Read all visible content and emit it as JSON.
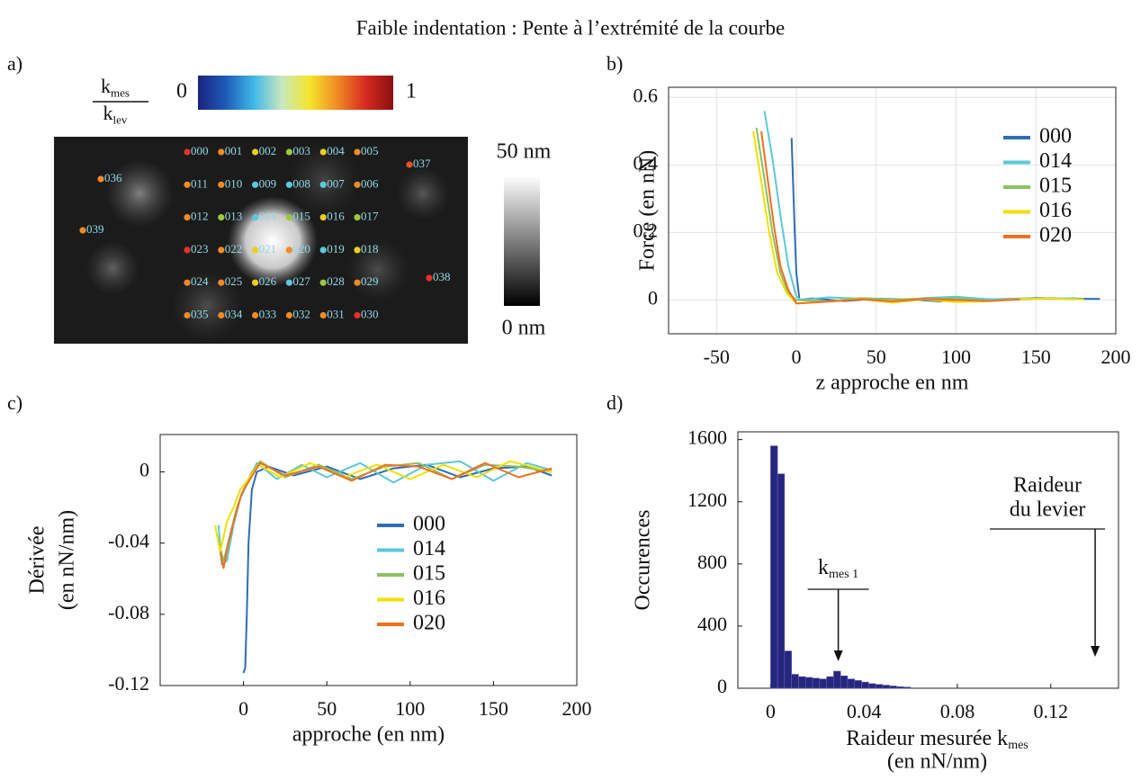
{
  "title": "Faible indentation : Pente à l’extrémité de la courbe",
  "chart_data": [
    {
      "type": "map",
      "panel": "a)",
      "colorbar": {
        "label": {
          "numerator": {
            "base": "k",
            "sub": "mes"
          },
          "denominator": {
            "base": "k",
            "sub": "lev"
          }
        },
        "clim": [
          0,
          1
        ],
        "ticks": [
          0,
          1
        ],
        "colors": [
          "#1a237e",
          "#1e5bb8",
          "#3fb8e8",
          "#c8e8c0",
          "#f5e62a",
          "#f08a24",
          "#d62a20",
          "#8b1010"
        ]
      },
      "height_scale": {
        "lim": [
          0,
          50
        ],
        "ticks": [
          {
            "value": 0,
            "label": "0 nm"
          },
          {
            "value": 50,
            "label": "50 nm"
          }
        ]
      },
      "grid_points": [
        [
          {
            "label": "000",
            "color": "#e8302a"
          },
          {
            "label": "001",
            "color": "#f08a24"
          },
          {
            "label": "002",
            "color": "#e8d020"
          },
          {
            "label": "003",
            "color": "#9cc83c"
          },
          {
            "label": "004",
            "color": "#e8d020"
          },
          {
            "label": "005",
            "color": "#f08a24"
          }
        ],
        [
          {
            "label": "011",
            "color": "#f08a24"
          },
          {
            "label": "010",
            "color": "#f08a24"
          },
          {
            "label": "009",
            "color": "#5cc8dc"
          },
          {
            "label": "008",
            "color": "#5cc8dc"
          },
          {
            "label": "007",
            "color": "#5cc8dc"
          },
          {
            "label": "006",
            "color": "#f08a24"
          }
        ],
        [
          {
            "label": "012",
            "color": "#f08a24"
          },
          {
            "label": "013",
            "color": "#9cc83c"
          },
          {
            "label": "014",
            "color": "#5cc8dc"
          },
          {
            "label": "015",
            "color": "#9cc83c"
          },
          {
            "label": "016",
            "color": "#e8d020"
          },
          {
            "label": "017",
            "color": "#9cc83c"
          }
        ],
        [
          {
            "label": "023",
            "color": "#e8302a"
          },
          {
            "label": "022",
            "color": "#f08a24"
          },
          {
            "label": "021",
            "color": "#e8d020"
          },
          {
            "label": "020",
            "color": "#f08a24"
          },
          {
            "label": "019",
            "color": "#5cc8dc"
          },
          {
            "label": "018",
            "color": "#e8d020"
          }
        ],
        [
          {
            "label": "024",
            "color": "#f08a24"
          },
          {
            "label": "025",
            "color": "#f08a24"
          },
          {
            "label": "026",
            "color": "#e8d020"
          },
          {
            "label": "027",
            "color": "#5cc8dc"
          },
          {
            "label": "028",
            "color": "#9cc83c"
          },
          {
            "label": "029",
            "color": "#f08a24"
          }
        ],
        [
          {
            "label": "035",
            "color": "#f08a24"
          },
          {
            "label": "034",
            "color": "#f08a24"
          },
          {
            "label": "033",
            "color": "#f08a24"
          },
          {
            "label": "032",
            "color": "#f08a24"
          },
          {
            "label": "031",
            "color": "#f08a24"
          },
          {
            "label": "030",
            "color": "#e8302a"
          }
        ]
      ],
      "extra_points": [
        {
          "label": "036",
          "color": "#f08a24"
        },
        {
          "label": "037",
          "color": "#e8502a"
        },
        {
          "label": "038",
          "color": "#e8302a"
        },
        {
          "label": "039",
          "color": "#f08a24"
        }
      ]
    },
    {
      "type": "line",
      "panel": "b)",
      "xlabel": "z approche en nm",
      "ylabel": "Force (en nN)",
      "xlim": [
        -80,
        200
      ],
      "ylim": [
        -0.1,
        0.63
      ],
      "xticks": [
        -50,
        0,
        50,
        100,
        150,
        200
      ],
      "yticks": [
        0,
        0.2,
        0.4,
        0.6
      ],
      "grid": true,
      "legend": "upper right",
      "series": [
        {
          "name": "000",
          "color": "#2f6db5",
          "x": [
            -3,
            -1,
            0,
            2,
            10,
            30,
            50,
            70,
            90,
            110,
            130,
            150,
            170,
            190
          ],
          "values": [
            0.48,
            0.2,
            0.08,
            0,
            0.005,
            -0.003,
            0.004,
            0.002,
            -0.004,
            0.005,
            0,
            0.006,
            0.004,
            0.003
          ]
        },
        {
          "name": "014",
          "color": "#5bc8d8",
          "x": [
            -20,
            -15,
            -10,
            -5,
            0,
            3,
            20,
            40,
            60,
            80,
            100,
            120,
            140,
            160,
            175
          ],
          "values": [
            0.56,
            0.42,
            0.25,
            0.1,
            0.01,
            0,
            0.008,
            0.004,
            -0.005,
            0.006,
            0.01,
            0.002,
            0.005,
            0.004,
            0.006
          ]
        },
        {
          "name": "015",
          "color": "#8cc060",
          "x": [
            -25,
            -20,
            -15,
            -10,
            -5,
            0,
            20,
            40,
            60,
            80,
            100,
            120,
            140,
            160
          ],
          "values": [
            0.51,
            0.36,
            0.2,
            0.08,
            0.02,
            0,
            -0.004,
            0.006,
            0.002,
            0.004,
            0.005,
            -0.003,
            0.002,
            0.006
          ]
        },
        {
          "name": "016",
          "color": "#f0e000",
          "x": [
            -27,
            -22,
            -17,
            -12,
            -6,
            0,
            20,
            40,
            60,
            80,
            100,
            120,
            140,
            160,
            180
          ],
          "values": [
            0.5,
            0.35,
            0.2,
            0.08,
            0.02,
            -0.01,
            -0.005,
            0.003,
            -0.008,
            0.002,
            -0.006,
            -0.004,
            0.003,
            0.004,
            0.002
          ]
        },
        {
          "name": "020",
          "color": "#f07020",
          "x": [
            -22,
            -18,
            -14,
            -10,
            -5,
            0,
            2,
            20,
            40,
            60,
            80,
            100,
            120,
            140
          ],
          "values": [
            0.5,
            0.36,
            0.22,
            0.1,
            0.03,
            -0.01,
            -0.01,
            -0.005,
            0.002,
            -0.004,
            0.003,
            0,
            -0.003,
            0.002
          ]
        }
      ]
    },
    {
      "type": "line",
      "panel": "c)",
      "xlabel": "approche (en nm)",
      "ylabel": [
        "Dérivée",
        "(en nN/nm)"
      ],
      "xlim": [
        -50,
        200
      ],
      "ylim": [
        -0.12,
        0.021
      ],
      "xticks": [
        0,
        50,
        100,
        150,
        200
      ],
      "yticks": [
        0,
        -0.04,
        -0.08,
        -0.12
      ],
      "grid": false,
      "legend": "center right",
      "series": [
        {
          "name": "000",
          "color": "#2f6db5",
          "x": [
            0,
            1,
            2,
            3,
            5,
            8,
            15,
            30,
            50,
            70,
            90,
            110,
            130,
            150,
            170,
            185
          ],
          "values": [
            -0.113,
            -0.11,
            -0.08,
            -0.04,
            -0.01,
            0,
            0.003,
            -0.002,
            0.003,
            -0.004,
            0.002,
            0.004,
            -0.003,
            0.002,
            0.003,
            -0.002
          ]
        },
        {
          "name": "014",
          "color": "#5bc8d8",
          "x": [
            -15,
            -13,
            -10,
            -6,
            -2,
            3,
            8,
            20,
            35,
            50,
            70,
            90,
            110,
            130,
            150,
            170,
            185
          ],
          "values": [
            -0.03,
            -0.052,
            -0.05,
            -0.03,
            -0.015,
            -0.005,
            0.005,
            -0.004,
            0.004,
            -0.003,
            0.005,
            -0.006,
            0.004,
            0.006,
            -0.005,
            0.005,
            0.001
          ]
        },
        {
          "name": "015",
          "color": "#8cc060",
          "x": [
            -16,
            -12,
            -8,
            -4,
            0,
            5,
            10,
            25,
            45,
            65,
            85,
            105,
            125,
            145,
            165,
            185
          ],
          "values": [
            -0.035,
            -0.05,
            -0.035,
            -0.02,
            -0.01,
            0,
            0.006,
            -0.003,
            0.004,
            -0.004,
            0.003,
            0.005,
            -0.004,
            0.004,
            0.003,
            0
          ]
        },
        {
          "name": "016",
          "color": "#f0e000",
          "x": [
            -17,
            -14,
            -10,
            -6,
            -2,
            3,
            9,
            22,
            40,
            60,
            80,
            100,
            120,
            140,
            160,
            185
          ],
          "values": [
            -0.03,
            -0.045,
            -0.028,
            -0.02,
            -0.01,
            -0.004,
            0.004,
            -0.003,
            0.005,
            -0.003,
            0.004,
            -0.004,
            0.004,
            -0.003,
            0.006,
            0
          ]
        },
        {
          "name": "020",
          "color": "#f07020",
          "x": [
            -14,
            -12,
            -9,
            -5,
            -1,
            4,
            10,
            25,
            45,
            65,
            85,
            105,
            125,
            145,
            165,
            185
          ],
          "values": [
            -0.045,
            -0.054,
            -0.04,
            -0.025,
            -0.012,
            -0.004,
            0.005,
            -0.002,
            0.003,
            -0.005,
            0.004,
            0.003,
            -0.004,
            0.005,
            -0.003,
            0.002
          ]
        }
      ]
    },
    {
      "type": "histogram",
      "panel": "d)",
      "ylabel": "Occurences",
      "xlabel": {
        "base": "Raideur mesurée k",
        "sub": "mes",
        "line2": "(en nN/nm)"
      },
      "xlim": [
        -0.014,
        0.149
      ],
      "ylim": [
        0,
        1650
      ],
      "xticks": [
        0,
        0.04,
        0.08,
        0.12
      ],
      "yticks": [
        0,
        400,
        800,
        1200,
        1600
      ],
      "grid": false,
      "color": "#262680",
      "bins": [
        0,
        0.003,
        0.006,
        0.009,
        0.012,
        0.015,
        0.018,
        0.021,
        0.024,
        0.027,
        0.03,
        0.033,
        0.036,
        0.039,
        0.042,
        0.045,
        0.048,
        0.051,
        0.054,
        0.057,
        0.06
      ],
      "values": [
        1560,
        1380,
        240,
        90,
        75,
        70,
        65,
        60,
        75,
        110,
        80,
        60,
        50,
        40,
        30,
        25,
        20,
        15,
        10,
        8
      ],
      "annotations": [
        {
          "text": {
            "base": "k",
            "sub": "mes 1"
          },
          "x": 0.029
        },
        {
          "text": [
            "Raideur",
            "du levier"
          ],
          "x": 0.139
        }
      ]
    }
  ]
}
